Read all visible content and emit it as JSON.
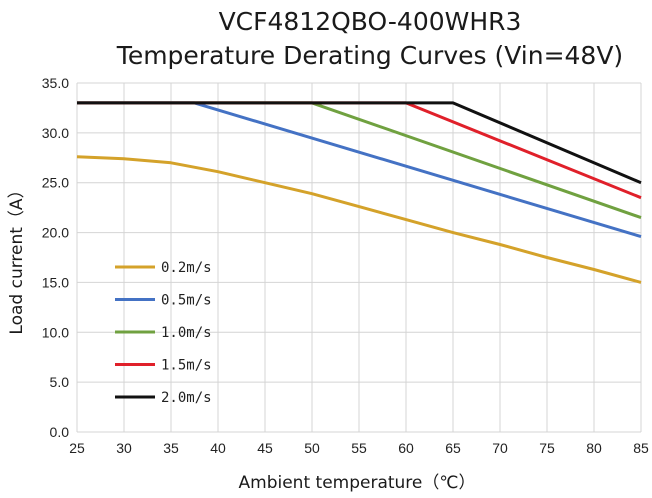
{
  "chart_data": {
    "type": "line",
    "title": "VCF4812QBO-400WHR3",
    "subtitle": "Temperature Derating Curves (Vin=48V)",
    "xlabel": "Ambient temperature（℃）",
    "ylabel": "Load current（A）",
    "xlim": [
      25,
      85
    ],
    "ylim": [
      0,
      35
    ],
    "xticks": [
      25,
      30,
      35,
      40,
      45,
      50,
      55,
      60,
      65,
      70,
      75,
      80,
      85
    ],
    "yticks": [
      0,
      5,
      10,
      15,
      20,
      25,
      30,
      35
    ],
    "xtick_labels": [
      "25",
      "30",
      "35",
      "40",
      "45",
      "50",
      "55",
      "60",
      "65",
      "70",
      "75",
      "80",
      "85"
    ],
    "ytick_labels": [
      "0.0",
      "5.0",
      "10.0",
      "15.0",
      "20.0",
      "25.0",
      "30.0",
      "35.0"
    ],
    "grid": true,
    "legend_position": "bottom-left",
    "series": [
      {
        "name": "0.2m/s",
        "color": "#d4a22a",
        "x": [
          25,
          30,
          35,
          40,
          45,
          50,
          55,
          60,
          65,
          70,
          75,
          80,
          85
        ],
        "y": [
          27.6,
          27.4,
          27.0,
          26.1,
          25.0,
          23.9,
          22.6,
          21.3,
          20.0,
          18.8,
          17.5,
          16.3,
          15.0
        ]
      },
      {
        "name": "0.5m/s",
        "color": "#4472c4",
        "x": [
          25,
          37.5,
          85
        ],
        "y": [
          33.0,
          33.0,
          19.6
        ]
      },
      {
        "name": "1.0m/s",
        "color": "#70a140",
        "x": [
          25,
          50,
          85
        ],
        "y": [
          33.0,
          33.0,
          21.5
        ]
      },
      {
        "name": "1.5m/s",
        "color": "#e0202a",
        "x": [
          25,
          60,
          85
        ],
        "y": [
          33.0,
          33.0,
          23.5
        ]
      },
      {
        "name": "2.0m/s",
        "color": "#111111",
        "x": [
          25,
          65,
          85
        ],
        "y": [
          33.0,
          33.0,
          25.0
        ]
      }
    ]
  }
}
